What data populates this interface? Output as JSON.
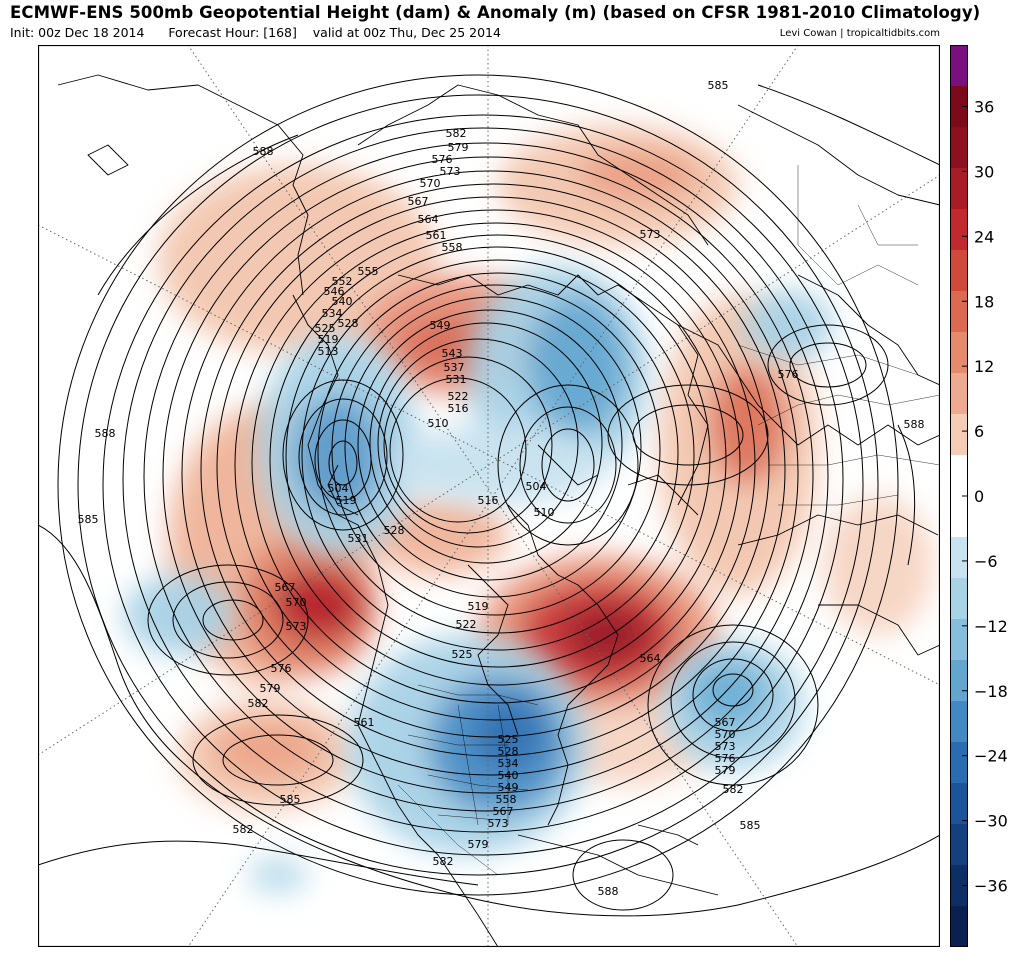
{
  "header": {
    "title": "ECMWF-ENS 500mb Geopotential Height (dam) & Anomaly (m) (based on CFSR 1981-2010 Climatology)",
    "init": "Init: 00z Dec 18 2014",
    "forecast_hour": "Forecast Hour: [168]",
    "valid": "valid at 00z Thu, Dec 25 2014",
    "credit": "Levi Cowan | tropicaltidbits.com"
  },
  "colorbar": {
    "ticks": [
      36,
      30,
      24,
      18,
      12,
      6,
      0,
      -6,
      -12,
      -18,
      -24,
      -30,
      -36
    ],
    "tick_labels": [
      "36",
      "30",
      "24",
      "18",
      "12",
      "6",
      "0",
      "−6",
      "−12",
      "−18",
      "−24",
      "−30",
      "−36"
    ],
    "colors": [
      "#7a0f80",
      "#7c0a1a",
      "#8c1020",
      "#a81c28",
      "#c02a2e",
      "#d04a3c",
      "#dc6a52",
      "#e68a6e",
      "#eeaa90",
      "#f5ccb6",
      "#ffffff",
      "#ffffff",
      "#c8e2ef",
      "#a8d2e6",
      "#86bedc",
      "#62a6d0",
      "#4288c2",
      "#2a6cb0",
      "#1c549a",
      "#14407e",
      "#0e2e66",
      "#0a2050"
    ]
  },
  "contour_labels": [
    {
      "text": "585",
      "anchor": "nw-upper"
    },
    {
      "text": "588",
      "anchor": "nw-coast"
    },
    {
      "text": "582"
    },
    {
      "text": "579"
    },
    {
      "text": "576"
    },
    {
      "text": "573"
    },
    {
      "text": "570"
    },
    {
      "text": "567"
    },
    {
      "text": "564"
    },
    {
      "text": "561"
    },
    {
      "text": "558"
    },
    {
      "text": "555"
    },
    {
      "text": "552"
    },
    {
      "text": "546"
    },
    {
      "text": "540"
    },
    {
      "text": "534"
    },
    {
      "text": "528"
    },
    {
      "text": "525"
    },
    {
      "text": "519"
    },
    {
      "text": "513"
    },
    {
      "text": "549"
    },
    {
      "text": "543"
    },
    {
      "text": "537"
    },
    {
      "text": "531"
    },
    {
      "text": "522"
    },
    {
      "text": "516"
    },
    {
      "text": "510"
    },
    {
      "text": "504"
    }
  ],
  "labels_west": [
    "588",
    "585",
    "567",
    "570",
    "573",
    "576",
    "579",
    "582",
    "585",
    "582",
    "561"
  ],
  "labels_center": [
    "519",
    "531",
    "528",
    "516",
    "510",
    "504",
    "519",
    "522",
    "525",
    "564"
  ],
  "labels_east": [
    "573",
    "576",
    "588"
  ],
  "labels_us": [
    "525",
    "528",
    "534",
    "540",
    "549",
    "558",
    "567",
    "573",
    "579",
    "582",
    "588"
  ],
  "labels_atlantic": [
    "567",
    "570",
    "573",
    "576",
    "579",
    "582",
    "585"
  ]
}
